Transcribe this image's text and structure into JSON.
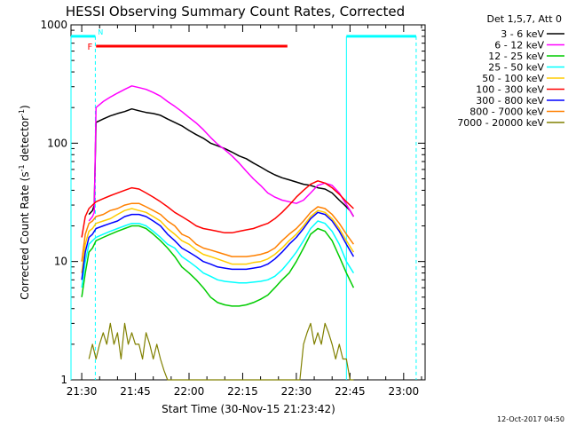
{
  "chart_data": {
    "type": "line",
    "title": "HESSI Observing Summary Count Rates, Corrected",
    "xlabel": "Start Time (30-Nov-15 21:23:42)",
    "ylabel": "Corrected Count Rate (s",
    "ylabel_sup1": "-1",
    "ylabel_mid": " detector",
    "ylabel_sup2": "-1",
    "ylabel_end": ")",
    "y_scale": "log",
    "ylim": [
      1,
      1000
    ],
    "xlim_minutes": [
      -3,
      96
    ],
    "x_ticks": [
      {
        "label": "21:30",
        "min": 0
      },
      {
        "label": "21:45",
        "min": 15
      },
      {
        "label": "22:00",
        "min": 30
      },
      {
        "label": "22:15",
        "min": 45
      },
      {
        "label": "22:30",
        "min": 60
      },
      {
        "label": "22:45",
        "min": 75
      },
      {
        "label": "23:00",
        "min": 90
      }
    ],
    "y_ticks": [
      {
        "label": "1",
        "value": 1
      },
      {
        "label": "10",
        "value": 10
      },
      {
        "label": "100",
        "value": 100
      },
      {
        "label": "1000",
        "value": 1000
      }
    ],
    "legend_title": "Det 1,5,7, Att 0",
    "legend_placement": "right",
    "series": [
      {
        "name": "3 - 6 keV",
        "color": "#000000",
        "x": [
          2,
          3,
          3.5,
          4,
          6,
          8,
          10,
          12,
          14,
          16,
          18,
          20,
          22,
          24,
          26,
          28,
          30,
          32,
          34,
          36,
          38,
          40,
          42,
          44,
          46,
          48,
          50,
          52,
          54,
          56,
          58,
          60,
          62,
          64,
          66,
          68,
          70,
          72,
          73.5,
          75,
          76
        ],
        "y": [
          25,
          27,
          30,
          150,
          160,
          170,
          178,
          185,
          195,
          188,
          182,
          178,
          172,
          160,
          150,
          140,
          128,
          118,
          110,
          100,
          95,
          90,
          84,
          78,
          74,
          68,
          63,
          58,
          54,
          51,
          49,
          47,
          45,
          44,
          42,
          41,
          38,
          33,
          30,
          27,
          24
        ]
      },
      {
        "name": "6 - 12 keV",
        "color": "#ff00ff",
        "x": [
          2,
          3,
          3.5,
          4,
          6,
          8,
          10,
          12,
          14,
          16,
          18,
          20,
          22,
          24,
          26,
          28,
          30,
          32,
          34,
          36,
          38,
          40,
          42,
          44,
          46,
          48,
          50,
          52,
          54,
          56,
          58,
          60,
          62,
          64,
          66,
          68,
          70,
          72,
          73.5,
          75,
          76
        ],
        "y": [
          22,
          24,
          26,
          200,
          225,
          245,
          265,
          285,
          305,
          295,
          285,
          268,
          250,
          225,
          205,
          185,
          165,
          148,
          130,
          112,
          98,
          88,
          78,
          68,
          58,
          50,
          44,
          38,
          35,
          33,
          32,
          31,
          33,
          38,
          44,
          46,
          44,
          38,
          32,
          27,
          24
        ]
      },
      {
        "name": "12 - 25 keV",
        "color": "#00cc00",
        "x": [
          0,
          1,
          2,
          3,
          4,
          6,
          8,
          10,
          12,
          14,
          16,
          18,
          20,
          22,
          24,
          26,
          28,
          30,
          32,
          34,
          36,
          38,
          40,
          42,
          44,
          46,
          48,
          50,
          52,
          54,
          56,
          58,
          60,
          62,
          64,
          66,
          68,
          70,
          72,
          74,
          76
        ],
        "y": [
          5,
          8,
          12,
          13,
          15,
          16,
          17,
          18,
          19,
          20,
          20,
          19,
          17,
          15,
          13,
          11,
          9,
          8,
          7,
          6,
          5,
          4.5,
          4.3,
          4.2,
          4.2,
          4.3,
          4.5,
          4.8,
          5.2,
          6,
          7,
          8,
          10,
          13,
          17,
          19,
          18,
          15,
          11,
          8,
          6
        ]
      },
      {
        "name": "25 - 50 keV",
        "color": "#00ffff",
        "x": [
          0,
          1,
          2,
          3,
          4,
          6,
          8,
          10,
          12,
          14,
          16,
          18,
          20,
          22,
          24,
          26,
          28,
          30,
          32,
          34,
          36,
          38,
          40,
          42,
          44,
          46,
          48,
          50,
          52,
          54,
          56,
          58,
          60,
          62,
          64,
          66,
          68,
          70,
          72,
          74,
          76
        ],
        "y": [
          6,
          10,
          14,
          15,
          16,
          17,
          18,
          19,
          20,
          21,
          21,
          20,
          18,
          16,
          14,
          13,
          11,
          10,
          9,
          8,
          7.5,
          7,
          6.8,
          6.7,
          6.6,
          6.6,
          6.7,
          6.8,
          7,
          7.5,
          8.5,
          10,
          12,
          15,
          19,
          22,
          21,
          18,
          14,
          10,
          8
        ]
      },
      {
        "name": "50 - 100 keV",
        "color": "#ffcc00",
        "x": [
          0,
          1,
          2,
          3,
          4,
          6,
          8,
          10,
          12,
          14,
          16,
          18,
          20,
          22,
          24,
          26,
          28,
          30,
          32,
          34,
          36,
          38,
          40,
          42,
          44,
          46,
          48,
          50,
          52,
          54,
          56,
          58,
          60,
          62,
          64,
          66,
          68,
          70,
          72,
          74,
          76
        ],
        "y": [
          8,
          14,
          18,
          19,
          21,
          22,
          23,
          25,
          27,
          28,
          27,
          26,
          24,
          22,
          19,
          17,
          15,
          14,
          12.5,
          11.5,
          11,
          10.5,
          10,
          9.5,
          9.5,
          9.5,
          9.8,
          10,
          10.5,
          11.5,
          13,
          15,
          17,
          20,
          24,
          27,
          26,
          23,
          19,
          15,
          12
        ]
      },
      {
        "name": "100 - 300 keV",
        "color": "#ff0000",
        "x": [
          0,
          1,
          2,
          3,
          4,
          6,
          8,
          10,
          12,
          14,
          16,
          18,
          20,
          22,
          24,
          26,
          28,
          30,
          32,
          34,
          36,
          38,
          40,
          42,
          44,
          46,
          48,
          50,
          52,
          54,
          56,
          58,
          60,
          62,
          64,
          66,
          68,
          70,
          72,
          74,
          76
        ],
        "y": [
          16,
          24,
          28,
          30,
          32,
          34,
          36,
          38,
          40,
          42,
          41,
          38,
          35,
          32,
          29,
          26,
          24,
          22,
          20,
          19,
          18.5,
          18,
          17.5,
          17.5,
          18,
          18.5,
          19,
          20,
          21,
          23,
          26,
          30,
          35,
          40,
          45,
          48,
          46,
          42,
          37,
          32,
          28
        ]
      },
      {
        "name": "300 - 800 keV",
        "color": "#0000ff",
        "x": [
          0,
          1,
          2,
          3,
          4,
          6,
          8,
          10,
          12,
          14,
          16,
          18,
          20,
          22,
          24,
          26,
          28,
          30,
          32,
          34,
          36,
          38,
          40,
          42,
          44,
          46,
          48,
          50,
          52,
          54,
          56,
          58,
          60,
          62,
          64,
          66,
          68,
          70,
          72,
          74,
          76
        ],
        "y": [
          7,
          12,
          16,
          17,
          19,
          20,
          21,
          22,
          24,
          25,
          25,
          24,
          22,
          20,
          17,
          15,
          13,
          12,
          11,
          10,
          9.5,
          9,
          8.8,
          8.6,
          8.6,
          8.6,
          8.8,
          9,
          9.5,
          10.5,
          12,
          14,
          16,
          19,
          23,
          26,
          25,
          22,
          18,
          14,
          11
        ]
      },
      {
        "name": "800 - 7000 keV",
        "color": "#ff8000",
        "x": [
          0,
          1,
          2,
          3,
          4,
          6,
          8,
          10,
          12,
          14,
          16,
          18,
          20,
          22,
          24,
          26,
          28,
          30,
          32,
          34,
          36,
          38,
          40,
          42,
          44,
          46,
          48,
          50,
          52,
          54,
          56,
          58,
          60,
          62,
          64,
          66,
          68,
          70,
          72,
          74,
          76
        ],
        "y": [
          10,
          17,
          21,
          22,
          24,
          25,
          27,
          28,
          30,
          31,
          31,
          29,
          27,
          25,
          22,
          20,
          17,
          16,
          14,
          13,
          12.5,
          12,
          11.5,
          11,
          11,
          11,
          11.2,
          11.5,
          12,
          13,
          15,
          17,
          19,
          22,
          26,
          29,
          28,
          25,
          21,
          17,
          14
        ]
      },
      {
        "name": "7000 - 20000 keV",
        "color": "#808000",
        "x": [
          2,
          3,
          4,
          5,
          6,
          7,
          8,
          9,
          10,
          11,
          12,
          13,
          14,
          15,
          16,
          17,
          18,
          19,
          20,
          21,
          22,
          23,
          24,
          25,
          26,
          27,
          28,
          29,
          30,
          31,
          32,
          33,
          34,
          35,
          36,
          37,
          38,
          39,
          40,
          41,
          42,
          43,
          44,
          45,
          46,
          47,
          48,
          49,
          50,
          51,
          52,
          53,
          54,
          55,
          56,
          57,
          58,
          59,
          60,
          61,
          62,
          63,
          64,
          65,
          66,
          67,
          68,
          69,
          70,
          71,
          72,
          73,
          74,
          75,
          76
        ],
        "y": [
          1.5,
          2,
          1.5,
          2,
          2.5,
          2,
          3,
          2,
          2.5,
          1.5,
          3,
          2,
          2.5,
          2,
          2,
          1.5,
          2.5,
          2,
          1.5,
          2,
          1.5,
          1.2,
          1,
          1,
          1,
          1,
          1,
          1,
          1,
          1,
          1,
          1,
          1,
          1,
          1,
          1,
          1,
          1,
          1,
          1,
          1,
          1,
          1,
          1,
          1,
          1,
          1,
          1,
          1,
          1,
          1,
          1,
          1,
          1,
          1,
          1,
          1,
          1,
          1,
          1,
          2,
          2.5,
          3,
          2,
          2.5,
          2,
          3,
          2.5,
          2,
          1.5,
          2,
          1.5,
          1.5,
          1,
          1
        ]
      }
    ],
    "annotations": {
      "cyan_states": [
        {
          "x_start": -3,
          "x_end": 3.8,
          "y": 800
        },
        {
          "x_start": 74,
          "x_end": 93.5,
          "y": 800
        }
      ],
      "cyan_vlines_solid": [
        -3,
        74
      ],
      "cyan_vlines_dashed": [
        3.8,
        93.5
      ],
      "flare_bar": {
        "x_start": 4,
        "x_end": 57.5,
        "y": 660,
        "color": "#ff0000",
        "label": "F"
      },
      "night_label": {
        "text": "N",
        "x": 4.5,
        "y": 870
      }
    }
  },
  "timestamp": "12-Oct-2017 04:50"
}
